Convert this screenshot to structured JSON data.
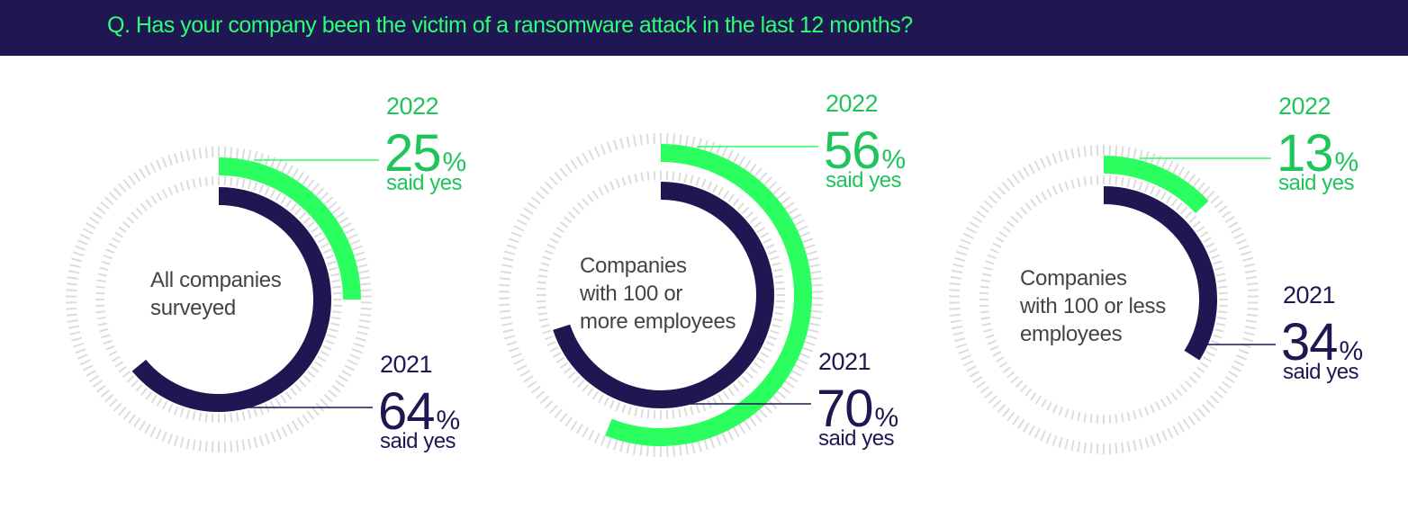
{
  "colors": {
    "banner_bg": "#1f1752",
    "question_text": "#2bff72",
    "y2022": "#2bff5f",
    "y2022_label": "#1fc45a",
    "y2021": "#1f1752",
    "tick": "#dcdcdc"
  },
  "header": {
    "question": "Q. Has your company been the victim of a ransomware attack in the last 12 months?"
  },
  "percent_symbol": "%",
  "said_yes": "said yes",
  "chart_data": [
    {
      "type": "radial-bar",
      "title_lines": [
        "All companies",
        "surveyed"
      ],
      "series": [
        {
          "name": "2022",
          "value": 25
        },
        {
          "name": "2021",
          "value": 64
        }
      ]
    },
    {
      "type": "radial-bar",
      "title_lines": [
        "Companies",
        "with 100 or",
        "more employees"
      ],
      "series": [
        {
          "name": "2022",
          "value": 56
        },
        {
          "name": "2021",
          "value": 70
        }
      ]
    },
    {
      "type": "radial-bar",
      "title_lines": [
        "Companies",
        "with 100 or less",
        "employees"
      ],
      "series": [
        {
          "name": "2022",
          "value": 13
        },
        {
          "name": "2021",
          "value": 34
        }
      ]
    }
  ]
}
